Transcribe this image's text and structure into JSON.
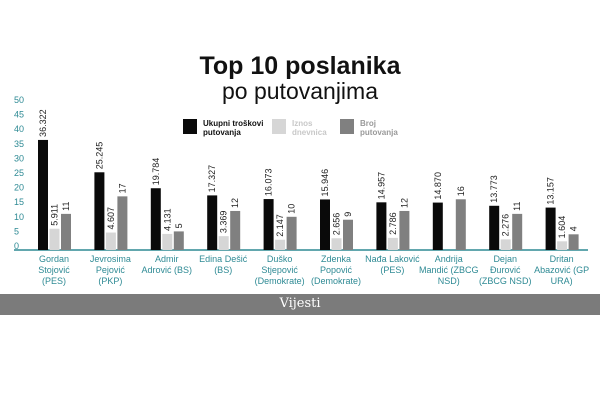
{
  "title": "Top 10 poslanika",
  "subtitle": "po putovanjima",
  "footer": {
    "logo": "Vijesti"
  },
  "colors": {
    "total": "#0a0a0a",
    "per_diem": "#d6d6d6",
    "trips": "#808080",
    "axis": "#2e8a94"
  },
  "chart_data": {
    "type": "bar",
    "title": "Top 10 poslanika po putovanjima",
    "ylim": [
      0,
      50
    ],
    "yticks": [
      "0",
      "5",
      "10",
      "15",
      "20",
      "25",
      "30",
      "35",
      "40",
      "45",
      "50"
    ],
    "legend_placement": "top-center",
    "categories": [
      "Gordan Stojović (PES)",
      "Jevrosima Pejović (PKP)",
      "Admir Adrović (BS)",
      "Edina Dešić (BS)",
      "Duško Stjepović (Demokrate)",
      "Zdenka Popović (Demokrate)",
      "Nađa Laković (PES)",
      "Andrija Mandić (ZBCG NSD)",
      "Dejan Đurović (ZBCG NSD)",
      "Dritan Abazović (GP URA)"
    ],
    "series": [
      {
        "name": "Ukupni troškovi putovanja",
        "values": [
          36.322,
          25.245,
          19.784,
          17.327,
          16.073,
          15.946,
          14.957,
          14.87,
          13.773,
          13.157
        ],
        "labels": [
          "36.322",
          "25.245",
          "19.784",
          "17.327",
          "16.073",
          "15.946",
          "14.957",
          "14.870",
          "13.773",
          "13.157"
        ]
      },
      {
        "name": "Iznos dnevnica",
        "values": [
          5.911,
          4.607,
          4.131,
          3.369,
          2.147,
          2.656,
          2.786,
          null,
          2.276,
          1.604
        ],
        "labels": [
          "5.911",
          "4.607",
          "4.131",
          "3.369",
          "2.147",
          "2.656",
          "2.786",
          null,
          "2.276",
          "1.604"
        ]
      },
      {
        "name": "Broj putovanja",
        "values": [
          11,
          17,
          5,
          12,
          10,
          9,
          12,
          16,
          11,
          4
        ],
        "labels": [
          "11",
          "17",
          "5",
          "12",
          "10",
          "9",
          "12",
          "16",
          "11",
          "4"
        ]
      }
    ]
  }
}
